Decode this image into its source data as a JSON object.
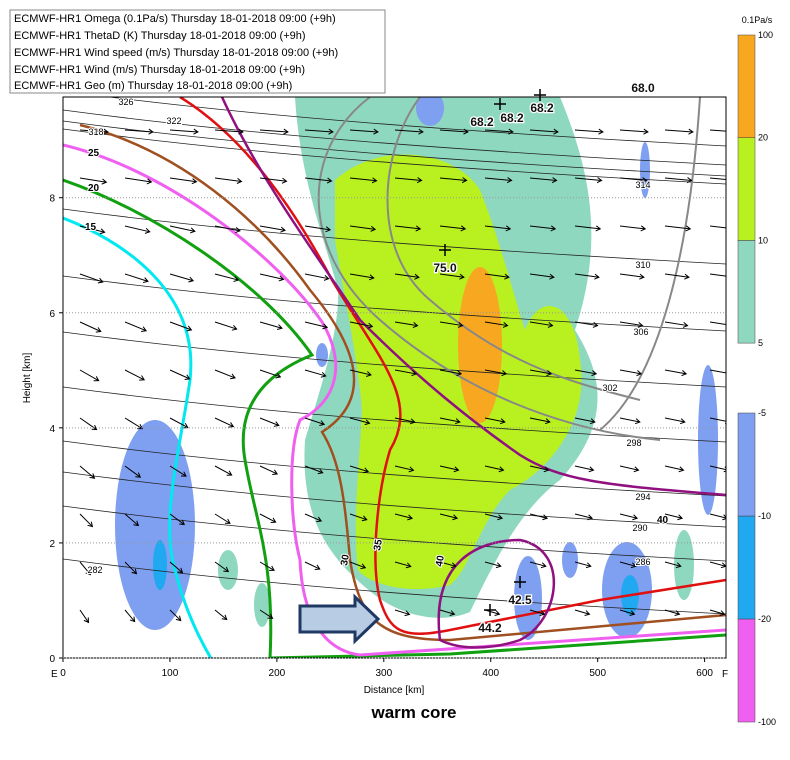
{
  "chart_data": {
    "type": "contour",
    "legend": [
      "ECMWF-HR1 Omega (0.1Pa/s) Thursday 18-01-2018 09:00 (+9h)",
      "ECMWF-HR1 ThetaD (K) Thursday 18-01-2018 09:00 (+9h)",
      "ECMWF-HR1 Wind speed (m/s) Thursday 18-01-2018 09:00 (+9h)",
      "ECMWF-HR1 Wind (m/s) Thursday 18-01-2018 09:00 (+9h)",
      "ECMWF-HR1 Geo (m) Thursday 18-01-2018 09:00 (+9h)"
    ],
    "xlabel": "Distance [km]",
    "ylabel": "Height [km]",
    "xlim": [
      0,
      620
    ],
    "ylim": [
      0,
      9.75
    ],
    "xticks": [
      0,
      100,
      200,
      300,
      400,
      500,
      600
    ],
    "yticks": [
      0,
      2,
      4,
      6,
      8
    ],
    "grid": true,
    "x_end_labels": [
      "E",
      "F"
    ],
    "colorbar": {
      "title": "0.1Pa/s",
      "positive": {
        "levels": [
          5,
          10,
          20,
          100
        ],
        "colors": [
          "#8fd8c0",
          "#b8f020",
          "#f8a820"
        ]
      },
      "negative": {
        "levels": [
          -100,
          -20,
          -10,
          -5
        ],
        "colors": [
          "#f060f0",
          "#20a8f0",
          "#7f9ff0"
        ]
      }
    },
    "theta_labels": [
      326,
      322,
      318,
      314,
      310,
      306,
      302,
      298,
      294,
      290,
      286,
      282
    ],
    "speed_labels": [
      15,
      20,
      25,
      30,
      35,
      40,
      40
    ],
    "geo_labels": [
      "68.2",
      "68.2",
      "68.2",
      "75.0",
      "42.5",
      "44.2",
      "68.0"
    ],
    "caption": "warm core"
  }
}
